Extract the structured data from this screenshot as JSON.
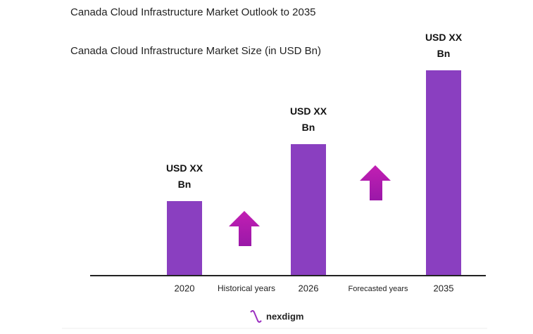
{
  "chart_data": {
    "type": "bar",
    "title": "Canada Cloud Infrastructure Market Outlook to 2035",
    "subtitle": "Canada Cloud Infrastructure Market Size (in USD Bn)",
    "categories": [
      "2020",
      "2026",
      "2035"
    ],
    "values": [
      105,
      186,
      291
    ],
    "value_labels": [
      "USD XX Bn",
      "USD XX Bn",
      "USD XX Bn"
    ],
    "color": "#8a3fc0",
    "annotations": [
      "Historical years",
      "Forecasted years"
    ],
    "logo": "nexdigm"
  }
}
